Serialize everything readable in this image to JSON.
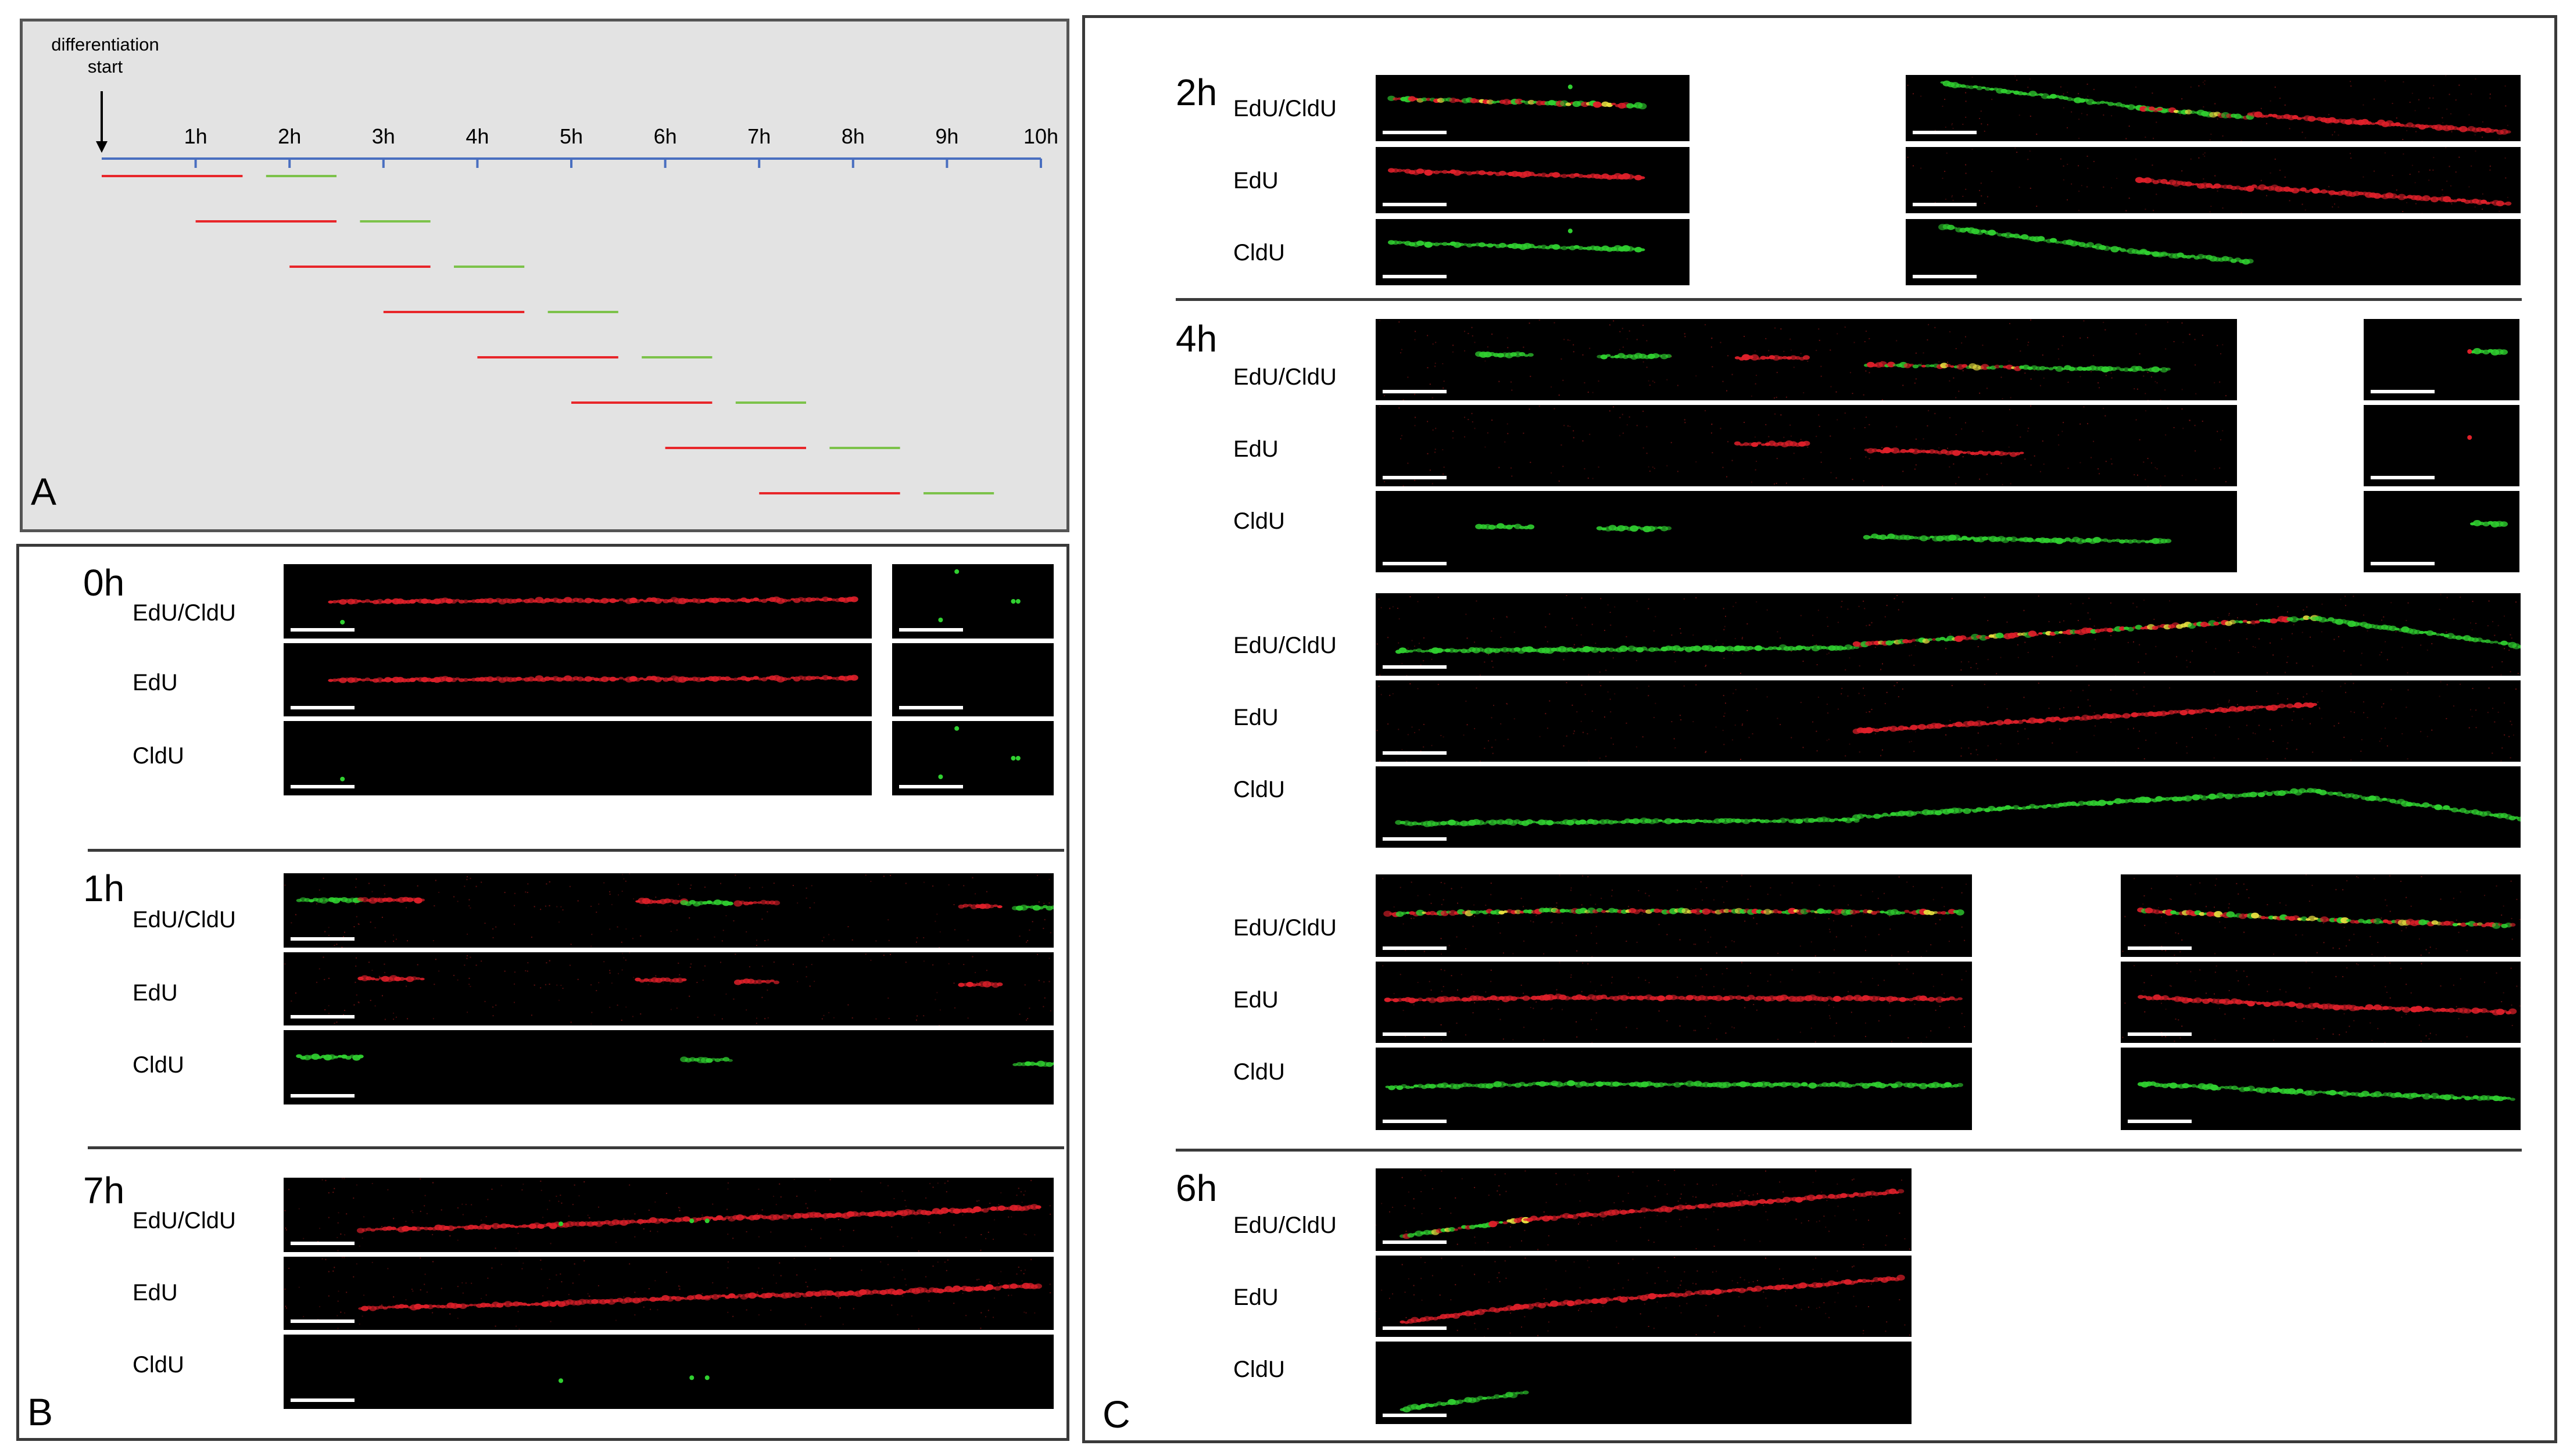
{
  "panel_a": {
    "letter": "A",
    "start_label_line1": "differentiation",
    "start_label_line2": "start",
    "ticks": [
      "1h",
      "2h",
      "3h",
      "4h",
      "5h",
      "6h",
      "7h",
      "8h",
      "9h",
      "10h"
    ],
    "pulses": [
      {
        "edu_start": 0.0,
        "edu_end": 1.5,
        "cldu_start": 1.75,
        "cldu_end": 2.5
      },
      {
        "edu_start": 1.0,
        "edu_end": 2.5,
        "cldu_start": 2.75,
        "cldu_end": 3.5
      },
      {
        "edu_start": 2.0,
        "edu_end": 3.5,
        "cldu_start": 3.75,
        "cldu_end": 4.5
      },
      {
        "edu_start": 3.0,
        "edu_end": 4.5,
        "cldu_start": 4.75,
        "cldu_end": 5.5
      },
      {
        "edu_start": 4.0,
        "edu_end": 5.5,
        "cldu_start": 5.75,
        "cldu_end": 6.5
      },
      {
        "edu_start": 5.0,
        "edu_end": 6.5,
        "cldu_start": 6.75,
        "cldu_end": 7.5
      },
      {
        "edu_start": 6.0,
        "edu_end": 7.5,
        "cldu_start": 7.75,
        "cldu_end": 8.5
      },
      {
        "edu_start": 7.0,
        "edu_end": 8.5,
        "cldu_start": 8.75,
        "cldu_end": 9.5
      }
    ],
    "colors": {
      "axis": "#4a6fc0",
      "edu": "#e8262a",
      "cldu": "#7cc24a",
      "background": "#e3e3e3"
    }
  },
  "panel_b": {
    "letter": "B",
    "groups": [
      {
        "time": "0h",
        "labels": [
          "EdU/CldU",
          "EdU",
          "CldU"
        ]
      },
      {
        "time": "1h",
        "labels": [
          "EdU/CldU",
          "EdU",
          "CldU"
        ]
      },
      {
        "time": "7h",
        "labels": [
          "EdU/CldU",
          "EdU",
          "CldU"
        ]
      }
    ]
  },
  "panel_c": {
    "letter": "C",
    "groups": [
      {
        "time": "2h",
        "labels": [
          "EdU/CldU",
          "EdU",
          "CldU"
        ]
      },
      {
        "time": "4h",
        "labels": [
          "EdU/CldU",
          "EdU",
          "CldU"
        ]
      },
      {
        "time": "",
        "labels": [
          "EdU/CldU",
          "EdU",
          "CldU"
        ]
      },
      {
        "time": "",
        "labels": [
          "EdU/CldU",
          "EdU",
          "CldU"
        ]
      },
      {
        "time": "6h",
        "labels": [
          "EdU/CldU",
          "EdU",
          "CldU"
        ]
      }
    ]
  },
  "colors": {
    "merge_red": "#e0202a",
    "merge_green": "#30d030",
    "overlap_yellow": "#e8e040",
    "scale_bar": "#ffffff"
  }
}
